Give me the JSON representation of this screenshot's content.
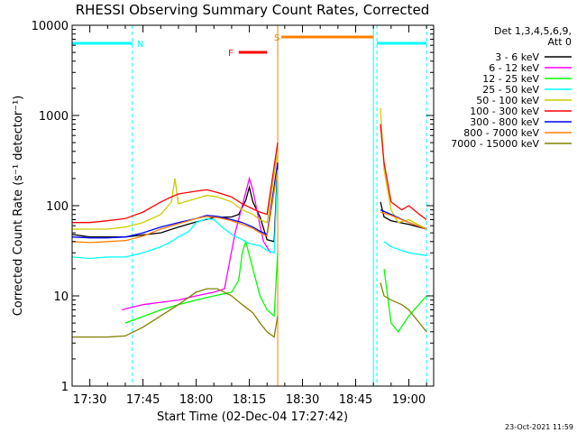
{
  "chart_data": {
    "type": "line",
    "title": "RHESSI Observing Summary Count Rates, Corrected",
    "xlabel": "Start Time (02-Dec-04 17:27:42)",
    "ylabel": "Corrected Count Rate (s⁻¹ detector⁻¹)",
    "y_scale": "log",
    "ylim": [
      1,
      10000
    ],
    "xlim": [
      "17:25",
      "19:07"
    ],
    "x_ticks": [
      "17:30",
      "17:45",
      "18:00",
      "18:15",
      "18:30",
      "18:45",
      "19:00"
    ],
    "y_ticks": [
      "1",
      "10",
      "100",
      "1000",
      "10000"
    ],
    "legend_title": [
      "Det 1,3,4,5,6,9,",
      "Att 0"
    ],
    "legend_placement": "right, outside plot",
    "footer_date": "23-Oct-2021 11:59",
    "state_bars": [
      {
        "label": "N",
        "color": "#00ffff",
        "intervals": [
          [
            "17:25",
            "17:42"
          ],
          [
            "18:51",
            "19:05"
          ]
        ]
      },
      {
        "label": "F",
        "color": "#ff0000",
        "intervals": [
          [
            "18:12",
            "18:20"
          ]
        ]
      },
      {
        "label": "S",
        "color": "#ff8000",
        "intervals": [
          [
            "18:24",
            "18:50"
          ]
        ]
      }
    ],
    "vertical_lines": [
      {
        "time": "17:25",
        "color": "#00ffff",
        "style": "solid"
      },
      {
        "time": "17:42",
        "color": "#00ffff",
        "style": "dashed"
      },
      {
        "time": "18:23",
        "color": "#ff8000",
        "style": "solid"
      },
      {
        "time": "18:50",
        "color": "#00ffff",
        "style": "solid"
      },
      {
        "time": "18:51",
        "color": "#00ffff",
        "style": "dashed"
      },
      {
        "time": "19:05",
        "color": "#00ffff",
        "style": "dashed"
      }
    ],
    "series": [
      {
        "name": "3 - 6 keV",
        "color": "#000000",
        "points": [
          [
            "17:25",
            48
          ],
          [
            "17:30",
            45
          ],
          [
            "17:40",
            45
          ],
          [
            "17:50",
            50
          ],
          [
            "17:55",
            58
          ],
          [
            "18:00",
            66
          ],
          [
            "18:05",
            74
          ],
          [
            "18:10",
            75
          ],
          [
            "18:12",
            80
          ],
          [
            "18:14",
            115
          ],
          [
            "18:15",
            160
          ],
          [
            "18:16",
            110
          ],
          [
            "18:18",
            75
          ],
          [
            "18:20",
            42
          ],
          [
            "18:22",
            40
          ],
          [
            "18:23",
            300
          ]
        ],
        "points_after": [
          [
            "18:52",
            110
          ],
          [
            "18:53",
            75
          ],
          [
            "18:55",
            68
          ],
          [
            "19:00",
            62
          ],
          [
            "19:05",
            55
          ]
        ]
      },
      {
        "name": "6 - 12 keV",
        "color": "#ff00ff",
        "points": [
          [
            "17:39",
            7
          ],
          [
            "17:42",
            7.5
          ],
          [
            "17:45",
            8
          ],
          [
            "17:50",
            8.5
          ],
          [
            "17:55",
            9
          ],
          [
            "18:00",
            10
          ],
          [
            "18:05",
            11
          ],
          [
            "18:08",
            12
          ],
          [
            "18:11",
            50
          ],
          [
            "18:13",
            100
          ],
          [
            "18:15",
            200
          ],
          [
            "18:16",
            150
          ],
          [
            "18:18",
            60
          ],
          [
            "18:19",
            40
          ],
          [
            "18:21",
            30
          ]
        ]
      },
      {
        "name": "12 - 25 keV",
        "color": "#00ff00",
        "points": [
          [
            "17:40",
            5
          ],
          [
            "17:50",
            7
          ],
          [
            "17:55",
            8
          ],
          [
            "18:00",
            9
          ],
          [
            "18:05",
            10
          ],
          [
            "18:10",
            11
          ],
          [
            "18:12",
            15
          ],
          [
            "18:13",
            30
          ],
          [
            "18:14",
            40
          ],
          [
            "18:16",
            20
          ],
          [
            "18:18",
            10
          ],
          [
            "18:20",
            7
          ],
          [
            "18:22",
            6
          ],
          [
            "18:23",
            30
          ]
        ],
        "points_after": [
          [
            "18:53",
            20
          ],
          [
            "18:54",
            10
          ],
          [
            "18:55",
            5
          ],
          [
            "18:57",
            4
          ],
          [
            "19:00",
            6
          ],
          [
            "19:05",
            10
          ]
        ]
      },
      {
        "name": "25 - 50 keV",
        "color": "#00ffff",
        "points": [
          [
            "17:25",
            27
          ],
          [
            "17:30",
            26
          ],
          [
            "17:35",
            27
          ],
          [
            "17:40",
            27
          ],
          [
            "17:45",
            30
          ],
          [
            "17:50",
            35
          ],
          [
            "17:53",
            40
          ],
          [
            "17:55",
            45
          ],
          [
            "17:58",
            52
          ],
          [
            "18:00",
            65
          ],
          [
            "18:03",
            72
          ],
          [
            "18:05",
            70
          ],
          [
            "18:08",
            55
          ],
          [
            "18:10",
            48
          ],
          [
            "18:13",
            42
          ],
          [
            "18:15",
            38
          ],
          [
            "18:18",
            36
          ],
          [
            "18:20",
            32
          ],
          [
            "18:22",
            30
          ],
          [
            "18:23",
            250
          ]
        ],
        "points_after": [
          [
            "18:53",
            40
          ],
          [
            "18:55",
            35
          ],
          [
            "19:00",
            30
          ],
          [
            "19:05",
            28
          ]
        ]
      },
      {
        "name": "50 - 100 keV",
        "color": "#cccc00",
        "points": [
          [
            "17:25",
            55
          ],
          [
            "17:30",
            55
          ],
          [
            "17:35",
            55
          ],
          [
            "17:40",
            58
          ],
          [
            "17:45",
            65
          ],
          [
            "17:50",
            80
          ],
          [
            "17:53",
            110
          ],
          [
            "17:54",
            200
          ],
          [
            "17:55",
            105
          ],
          [
            "18:00",
            120
          ],
          [
            "18:03",
            130
          ],
          [
            "18:06",
            125
          ],
          [
            "18:10",
            110
          ],
          [
            "18:13",
            90
          ],
          [
            "18:16",
            80
          ],
          [
            "18:18",
            70
          ],
          [
            "18:20",
            65
          ],
          [
            "18:23",
            400
          ]
        ],
        "points_after": [
          [
            "18:52",
            1200
          ],
          [
            "18:53",
            250
          ],
          [
            "18:55",
            90
          ],
          [
            "18:57",
            65
          ],
          [
            "19:00",
            70
          ],
          [
            "19:05",
            55
          ]
        ]
      },
      {
        "name": "100 - 300 keV",
        "color": "#ff0000",
        "points": [
          [
            "17:25",
            65
          ],
          [
            "17:30",
            65
          ],
          [
            "17:35",
            68
          ],
          [
            "17:40",
            72
          ],
          [
            "17:45",
            85
          ],
          [
            "17:50",
            110
          ],
          [
            "17:53",
            125
          ],
          [
            "17:55",
            135
          ],
          [
            "18:00",
            145
          ],
          [
            "18:03",
            150
          ],
          [
            "18:06",
            140
          ],
          [
            "18:10",
            125
          ],
          [
            "18:13",
            105
          ],
          [
            "18:16",
            92
          ],
          [
            "18:18",
            85
          ],
          [
            "18:20",
            80
          ],
          [
            "18:23",
            500
          ]
        ],
        "points_after": [
          [
            "18:52",
            800
          ],
          [
            "18:53",
            300
          ],
          [
            "18:55",
            110
          ],
          [
            "18:58",
            90
          ],
          [
            "19:00",
            100
          ],
          [
            "19:03",
            80
          ],
          [
            "19:05",
            70
          ]
        ]
      },
      {
        "name": "300 - 800 keV",
        "color": "#0000ff",
        "points": [
          [
            "17:25",
            45
          ],
          [
            "17:30",
            44
          ],
          [
            "17:35",
            44
          ],
          [
            "17:40",
            45
          ],
          [
            "17:45",
            50
          ],
          [
            "17:50",
            58
          ],
          [
            "17:55",
            65
          ],
          [
            "18:00",
            72
          ],
          [
            "18:03",
            78
          ],
          [
            "18:06",
            76
          ],
          [
            "18:10",
            70
          ],
          [
            "18:13",
            65
          ],
          [
            "18:16",
            58
          ],
          [
            "18:18",
            52
          ],
          [
            "18:20",
            48
          ],
          [
            "18:23",
            300
          ]
        ],
        "points_after": [
          [
            "18:52",
            90
          ],
          [
            "18:55",
            80
          ],
          [
            "19:00",
            65
          ],
          [
            "19:05",
            55
          ]
        ]
      },
      {
        "name": "800 - 7000 keV",
        "color": "#ff8000",
        "points": [
          [
            "17:25",
            40
          ],
          [
            "17:30",
            39
          ],
          [
            "17:35",
            40
          ],
          [
            "17:40",
            41
          ],
          [
            "17:45",
            46
          ],
          [
            "17:50",
            55
          ],
          [
            "17:55",
            63
          ],
          [
            "18:00",
            72
          ],
          [
            "18:03",
            76
          ],
          [
            "18:06",
            74
          ],
          [
            "18:10",
            68
          ],
          [
            "18:13",
            62
          ],
          [
            "18:16",
            56
          ],
          [
            "18:18",
            50
          ],
          [
            "18:20",
            46
          ],
          [
            "18:23",
            250
          ]
        ],
        "points_after": [
          [
            "18:52",
            85
          ],
          [
            "18:55",
            78
          ],
          [
            "19:00",
            65
          ],
          [
            "19:05",
            55
          ]
        ]
      },
      {
        "name": "7000 - 15000 keV",
        "color": "#808000",
        "points": [
          [
            "17:25",
            3.5
          ],
          [
            "17:30",
            3.5
          ],
          [
            "17:35",
            3.5
          ],
          [
            "17:40",
            3.6
          ],
          [
            "17:45",
            4.5
          ],
          [
            "17:50",
            6
          ],
          [
            "17:55",
            8
          ],
          [
            "18:00",
            11
          ],
          [
            "18:03",
            12
          ],
          [
            "18:06",
            12
          ],
          [
            "18:10",
            10
          ],
          [
            "18:13",
            8
          ],
          [
            "18:16",
            6.5
          ],
          [
            "18:18",
            5
          ],
          [
            "18:20",
            4
          ],
          [
            "18:22",
            3.5
          ],
          [
            "18:23",
            6
          ]
        ],
        "points_after": [
          [
            "18:52",
            14
          ],
          [
            "18:53",
            10
          ],
          [
            "18:55",
            9
          ],
          [
            "18:58",
            8
          ],
          [
            "19:00",
            7
          ],
          [
            "19:03",
            5
          ],
          [
            "19:05",
            4
          ]
        ]
      }
    ]
  }
}
